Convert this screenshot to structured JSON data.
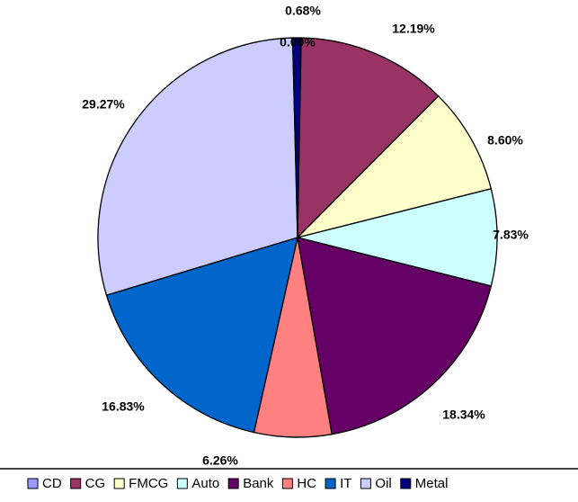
{
  "chart_data": {
    "type": "pie",
    "categories": [
      "CD",
      "CG",
      "FMCG",
      "Auto",
      "Bank",
      "HC",
      "IT",
      "Oil",
      "Metal"
    ],
    "values": [
      0.0,
      12.19,
      8.6,
      7.83,
      18.34,
      6.26,
      16.83,
      29.27,
      0.68
    ],
    "labels": [
      "0.00%",
      "12.19%",
      "8.60%",
      "7.83%",
      "18.34%",
      "6.26%",
      "16.83%",
      "29.27%",
      "0.68%"
    ],
    "colors": [
      "#9999ff",
      "#993366",
      "#ffffcc",
      "#ccffff",
      "#660066",
      "#ff8080",
      "#0066cc",
      "#ccccff",
      "#000080"
    ],
    "legend": "bottom",
    "title": ""
  }
}
